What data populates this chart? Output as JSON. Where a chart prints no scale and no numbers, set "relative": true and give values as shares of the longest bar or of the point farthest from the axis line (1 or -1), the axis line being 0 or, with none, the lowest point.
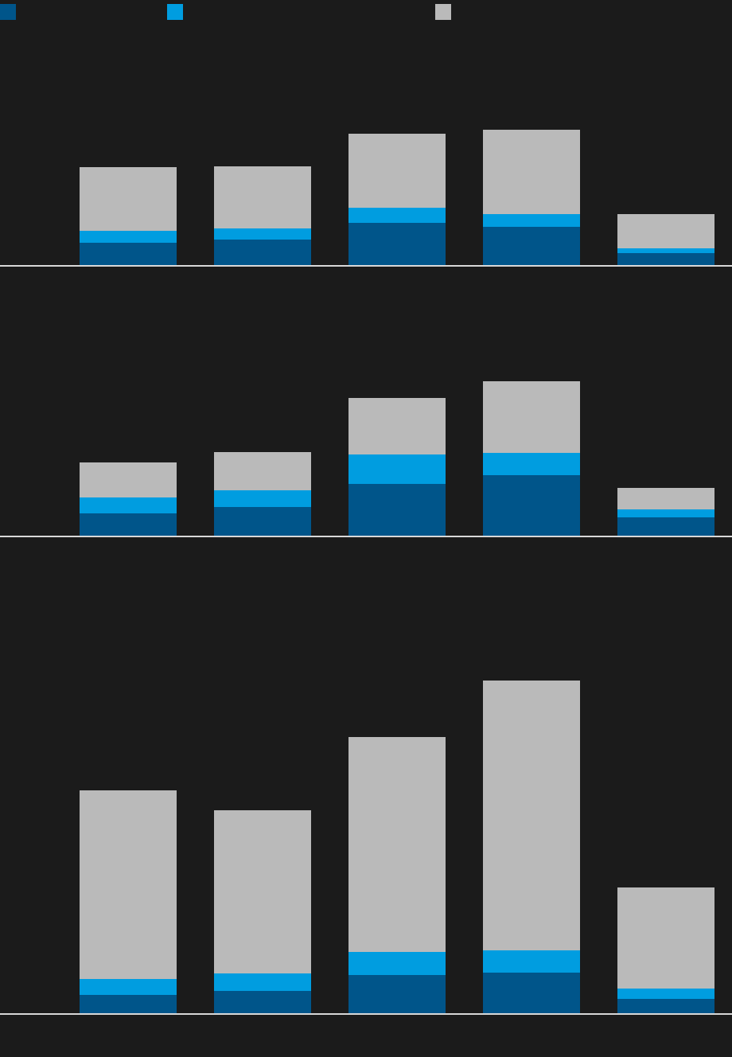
{
  "chart_data": [
    {
      "type": "bar",
      "stacked": true,
      "relative": true,
      "categories": [
        null,
        null,
        null,
        null,
        null
      ],
      "series": [
        {
          "color": "#00558a",
          "values": [
            0.165,
            0.188,
            0.312,
            0.282,
            0.088
          ]
        },
        {
          "color": "#009de0",
          "values": [
            0.088,
            0.082,
            0.112,
            0.094,
            0.035
          ]
        },
        {
          "color": "#bababa",
          "values": [
            0.471,
            0.459,
            0.547,
            0.624,
            0.253
          ]
        }
      ]
    },
    {
      "type": "bar",
      "stacked": true,
      "relative": true,
      "categories": [
        null,
        null,
        null,
        null,
        null
      ],
      "series": [
        {
          "color": "#00558a",
          "values": [
            0.144,
            0.186,
            0.335,
            0.392,
            0.119
          ]
        },
        {
          "color": "#009de0",
          "values": [
            0.103,
            0.108,
            0.191,
            0.144,
            0.052
          ]
        },
        {
          "color": "#bababa",
          "values": [
            0.227,
            0.247,
            0.366,
            0.464,
            0.139
          ]
        }
      ]
    },
    {
      "type": "bar",
      "stacked": true,
      "relative": true,
      "categories": [
        null,
        null,
        null,
        null,
        null
      ],
      "series": [
        {
          "color": "#00558a",
          "values": [
            0.055,
            0.067,
            0.115,
            0.122,
            0.043
          ]
        },
        {
          "color": "#009de0",
          "values": [
            0.048,
            0.053,
            0.069,
            0.067,
            0.031
          ]
        },
        {
          "color": "#bababa",
          "values": [
            0.567,
            0.49,
            0.646,
            0.811,
            0.304
          ]
        }
      ]
    }
  ]
}
